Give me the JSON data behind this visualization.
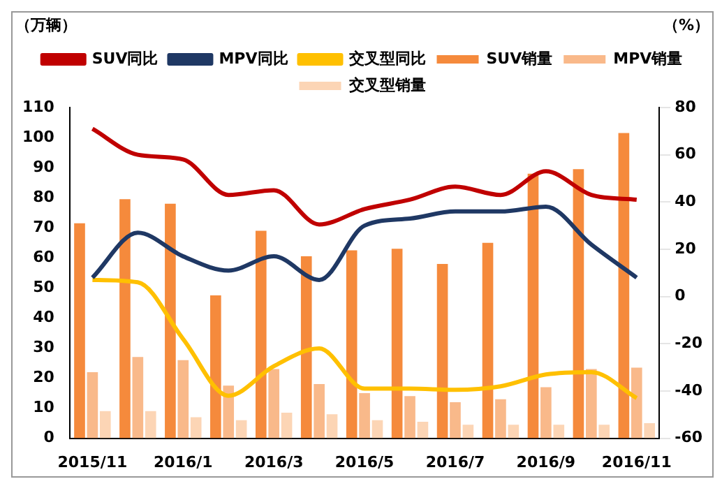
{
  "chart_data": {
    "type": "bar",
    "ylabel": "（万辆）",
    "y2label": "（%）",
    "categories": [
      "2015/11",
      null,
      "2016/1",
      null,
      "2016/3",
      null,
      "2016/5",
      null,
      "2016/7",
      null,
      "2016/9",
      null,
      "2016/11"
    ],
    "series": [
      {
        "name": "SUV销量",
        "color": "#f58a3c",
        "values": [
          71.5,
          79.5,
          78,
          47.5,
          69,
          60.5,
          62.5,
          63,
          58,
          65,
          88,
          89.5,
          101.5
        ]
      },
      {
        "name": "MPV销量",
        "color": "#f9b98a",
        "values": [
          22,
          27,
          26,
          17.5,
          23,
          18,
          15,
          14,
          12,
          13,
          17,
          23,
          23.5
        ]
      },
      {
        "name": "交叉型销量",
        "color": "#fcd5b5",
        "values": [
          9,
          9,
          7,
          6,
          8.5,
          8,
          6,
          5.5,
          4.5,
          4.5,
          4.5,
          4.5,
          5
        ]
      },
      {
        "name": "SUV同比",
        "type": "line",
        "axis": "y2",
        "color": "#c00000",
        "values": [
          71,
          60,
          58,
          43,
          45,
          30.5,
          37,
          41,
          46.5,
          43,
          53,
          43,
          41
        ]
      },
      {
        "name": "MPV同比",
        "type": "line",
        "axis": "y2",
        "color": "#1f3864",
        "values": [
          8,
          27,
          17,
          11,
          17,
          7,
          30,
          33,
          36,
          36,
          38,
          22,
          8
        ]
      },
      {
        "name": "交叉型同比",
        "type": "line",
        "axis": "y2",
        "color": "#ffc000",
        "values": [
          7,
          6,
          -18,
          -42,
          -29.5,
          -22,
          -39,
          -39,
          -39.5,
          -38,
          -33,
          -32,
          -43
        ]
      }
    ],
    "ylim": [
      0,
      110
    ],
    "yticks": [
      0,
      10,
      20,
      30,
      40,
      50,
      60,
      70,
      80,
      90,
      100,
      110
    ],
    "y2lim": [
      -60,
      80
    ],
    "y2ticks": [
      -60,
      -40,
      -20,
      0,
      20,
      40,
      60,
      80
    ],
    "grid": false,
    "legend": "top",
    "marker": "none",
    "line_style": "solid"
  }
}
